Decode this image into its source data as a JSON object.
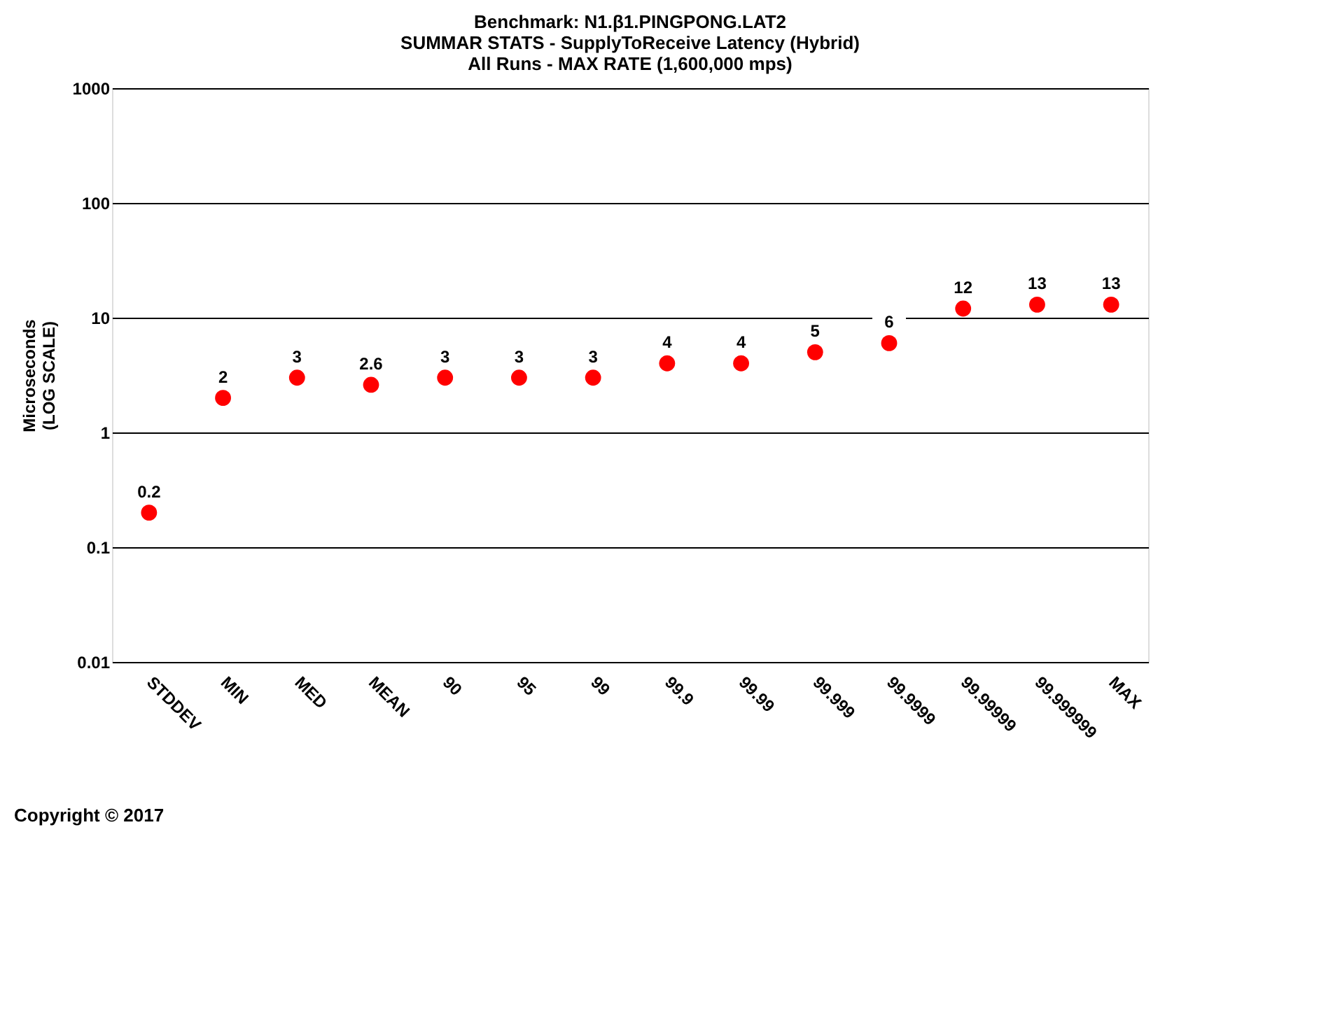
{
  "chart_data": {
    "type": "scatter",
    "title": [
      "Benchmark: N1.β1.PINGPONG.LAT2",
      "SUMMAR STATS - SupplyToReceive Latency (Hybrid)",
      "All Runs - MAX RATE (1,600,000 mps)"
    ],
    "ylabel": "Microseconds\n(LOG SCALE)",
    "categories": [
      "STDDEV",
      "MIN",
      "MED",
      "MEAN",
      "90",
      "95",
      "99",
      "99.9",
      "99.99",
      "99.999",
      "99.9999",
      "99.99999",
      "99.999999",
      "MAX"
    ],
    "series": [
      {
        "color": "#ff0000",
        "values": [
          0.2,
          2,
          3,
          2.6,
          3,
          3,
          3,
          4,
          4,
          5,
          6,
          12,
          13,
          13
        ]
      }
    ],
    "log": "y",
    "ylim": [
      0.01,
      1000
    ],
    "yticks": [
      0.01,
      0.1,
      1,
      10,
      100,
      1000
    ],
    "grid": "y",
    "marker": "circle",
    "data_labels": true,
    "annotations": [
      "Copyright © 2017"
    ]
  }
}
